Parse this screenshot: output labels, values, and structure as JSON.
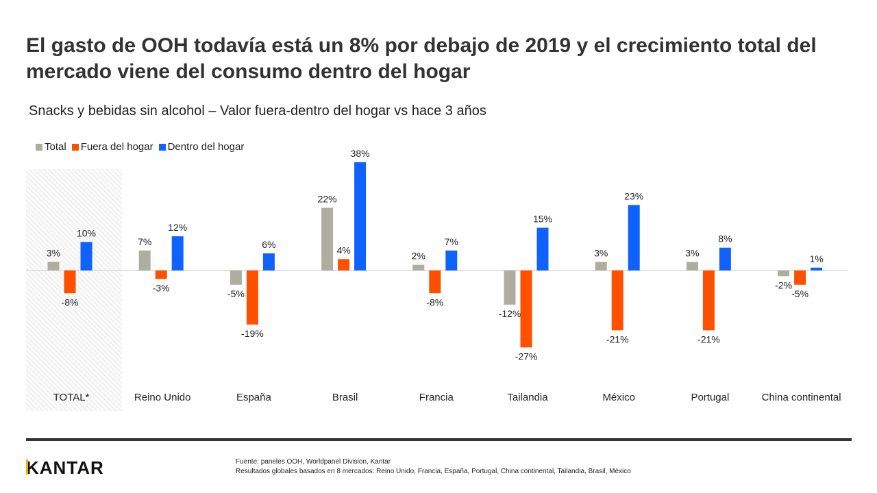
{
  "title": "El gasto de OOH todavía está un 8% por debajo de 2019 y el crecimiento total del mercado viene del consumo dentro del hogar",
  "subtitle": "Snacks y bebidas sin alcohol – Valor fuera-dentro del hogar vs hace 3 años",
  "logo": "KANTAR",
  "footer": {
    "source": "Fuente: paneles OOH, Worldpanel Division, Kantar",
    "note": "Resultados globales basados en 8 mercados: Reino Unido, Francia, España, Portugal, China continental, Tailandia, Brasil, México"
  },
  "chart_data": {
    "type": "bar",
    "categories": [
      "TOTAL*",
      "Reino Unido",
      "España",
      "Brasil",
      "Francia",
      "Tailandia",
      "México",
      "Portugal",
      "China continental"
    ],
    "series": [
      {
        "name": "Total",
        "color": "#aeaea0",
        "values": [
          3,
          7,
          -5,
          22,
          2,
          -12,
          3,
          3,
          -2
        ]
      },
      {
        "name": "Fuera del hogar",
        "color": "#ff5000",
        "values": [
          -8,
          -3,
          -19,
          4,
          -8,
          -27,
          -21,
          -21,
          -5
        ]
      },
      {
        "name": "Dentro del hogar",
        "color": "#0f62fe",
        "values": [
          10,
          12,
          6,
          38,
          7,
          15,
          23,
          8,
          1
        ]
      }
    ],
    "unit": "%",
    "highlighted_category": "TOTAL*",
    "legend_position": "top-left",
    "grid": false
  }
}
